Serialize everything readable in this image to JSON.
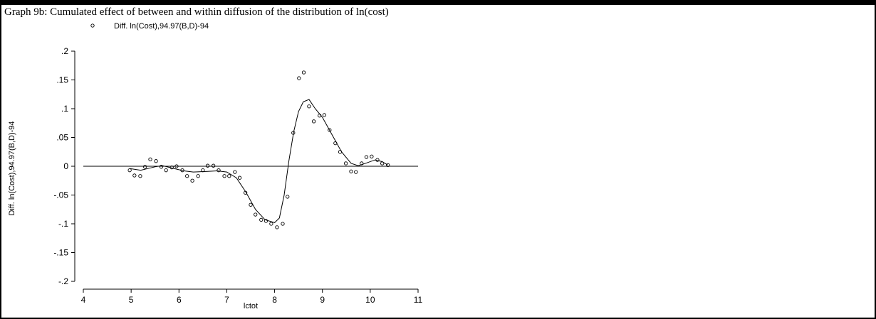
{
  "chart_data": {
    "type": "scatter",
    "title": "Graph 9b: Cumulated effect of between and within diffusion of the distribution of ln(cost)",
    "x_label": "lctot",
    "y_label": "Diff. ln(Cost),94.97(B,D)-94",
    "xlim": [
      4,
      11
    ],
    "ylim": [
      -0.2,
      0.2
    ],
    "xticks": [
      4,
      5,
      6,
      7,
      8,
      9,
      10,
      11
    ],
    "yticks": [
      {
        "value": 0.2,
        "label": ".2"
      },
      {
        "value": 0.15,
        "label": ".15"
      },
      {
        "value": 0.1,
        "label": ".1"
      },
      {
        "value": 0.05,
        "label": ".05"
      },
      0,
      {
        "value": -0.05,
        "label": "-.05"
      },
      {
        "value": -0.1,
        "label": "-.1"
      },
      {
        "value": -0.15,
        "label": "-.15"
      },
      {
        "value": -0.2,
        "label": "-.2"
      }
    ],
    "hline": 0,
    "series": [
      {
        "name": "Diff. ln(Cost),94.97(B,D)-94",
        "style": "markers",
        "color": "#000000",
        "x": [
          4.97,
          5.07,
          5.19,
          5.29,
          5.4,
          5.52,
          5.63,
          5.73,
          5.85,
          5.95,
          6.07,
          6.17,
          6.28,
          6.4,
          6.5,
          6.6,
          6.72,
          6.83,
          6.95,
          7.05,
          7.17,
          7.27,
          7.39,
          7.5,
          7.6,
          7.72,
          7.82,
          7.93,
          8.05,
          8.17,
          8.27,
          8.39,
          8.51,
          8.61,
          8.72,
          8.82,
          8.94,
          9.04,
          9.15,
          9.27,
          9.37,
          9.49,
          9.6,
          9.7,
          9.82,
          9.92,
          10.03,
          10.15,
          10.25,
          10.37
        ],
        "values": [
          -0.007,
          -0.016,
          -0.017,
          -0.001,
          0.012,
          0.009,
          -0.001,
          -0.007,
          -0.002,
          0.0,
          -0.007,
          -0.017,
          -0.025,
          -0.017,
          -0.007,
          0.001,
          0.001,
          -0.007,
          -0.017,
          -0.017,
          -0.01,
          -0.02,
          -0.046,
          -0.067,
          -0.084,
          -0.093,
          -0.095,
          -0.1,
          -0.106,
          -0.1,
          -0.053,
          0.058,
          0.153,
          0.163,
          0.104,
          0.078,
          0.088,
          0.089,
          0.063,
          0.04,
          0.025,
          0.005,
          -0.009,
          -0.01,
          0.005,
          0.016,
          0.017,
          0.011,
          0.005,
          0.002
        ]
      },
      {
        "style": "line",
        "color": "#000000",
        "x": [
          4.97,
          5.2,
          5.5,
          5.65,
          5.9,
          6.1,
          6.3,
          6.6,
          6.8,
          7.0,
          7.2,
          7.4,
          7.6,
          7.8,
          8.0,
          8.1,
          8.2,
          8.3,
          8.4,
          8.5,
          8.6,
          8.72,
          8.85,
          9.0,
          9.2,
          9.4,
          9.6,
          9.75,
          9.9,
          10.1,
          10.25,
          10.37
        ],
        "values": [
          -0.004,
          -0.007,
          -0.001,
          0.001,
          -0.004,
          -0.008,
          -0.01,
          -0.009,
          -0.008,
          -0.01,
          -0.02,
          -0.045,
          -0.075,
          -0.093,
          -0.098,
          -0.09,
          -0.05,
          0.01,
          0.06,
          0.095,
          0.112,
          0.116,
          0.1,
          0.085,
          0.055,
          0.025,
          0.005,
          0.001,
          0.005,
          0.011,
          0.008,
          0.002
        ]
      }
    ]
  }
}
